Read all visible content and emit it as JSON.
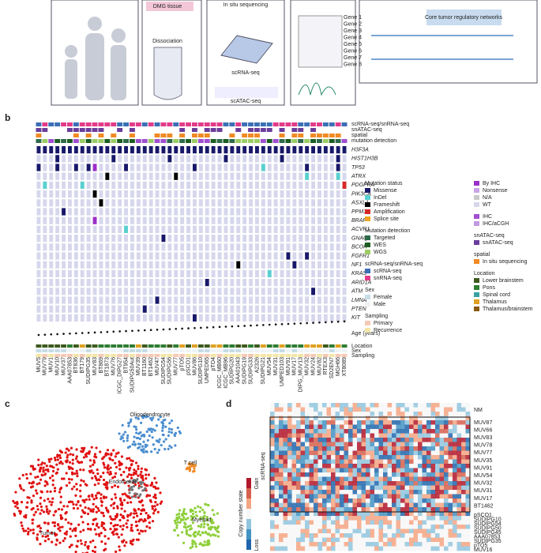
{
  "panels": {
    "a": "a",
    "b": "b",
    "c": "c",
    "d": "d"
  },
  "panel_a": {
    "tissue": "DMG tissue",
    "dissociation": "Dissociation",
    "insitu": "In situ sequencing",
    "scrna": "scRNA-seq",
    "scatac": "scATAC-seq",
    "genes": [
      "Gene 1",
      "Gene 2",
      "Gene 3",
      "Gene 4",
      "Gene 5",
      "Gene 6",
      "Gene 7",
      "Gene 8"
    ],
    "networks": "Core tumor regulatory networks"
  },
  "panel_b": {
    "tracks": [
      "scRNA-seq/snRNA-seq",
      "snATAC-seq",
      "spatial",
      "mutation detection"
    ],
    "genes": [
      "H3F3A",
      "HIST1H3B",
      "TP53",
      "ATRX",
      "PDGFRA",
      "PIK3CA",
      "ASXL1",
      "PPM1D",
      "BRAF",
      "ACVR1",
      "GNAQ",
      "BCOR",
      "FGFR1",
      "NF1",
      "KRAS",
      "ARID1A",
      "ATM",
      "LMNA",
      "PTEN",
      "KIT"
    ],
    "bottom_tracks": [
      "Age (years)",
      "Location",
      "Sex",
      "Sampling"
    ],
    "samples": [
      "MUV5",
      "MUV79",
      "MUV1",
      "MUV10",
      "MUV37",
      "AAA07853",
      "BT836",
      "BT179",
      "SUDIPG35",
      "MUV83",
      "BT869",
      "BT1873",
      "MUV76",
      "ICGC_DIPG27",
      "BT954",
      "SUDIPG50Aut",
      "MUV39",
      "BT1160",
      "BT1462",
      "MUV47",
      "SUDIPG54",
      "SUDIPG56",
      "MUV77",
      "pTO5",
      "pSCO1",
      "MUV86",
      "SUDIPG10",
      "UMPED65",
      "pTO4",
      "ICGC_MB60",
      "ICGC_MB96",
      "SUDIPG20",
      "AAA01043",
      "SUDIPG19",
      "SUDIPG33",
      "A2326",
      "SUDIPG21",
      "MUV54",
      "MUV31",
      "UMPED103",
      "MUV91",
      "MUV17",
      "DIPG_MUV13",
      "MUV32",
      "MUV24",
      "MUV82",
      "RTEX3",
      "SD2EN7",
      "MGH66",
      "XT8089"
    ],
    "mutations": [
      {
        "gene": "TP53",
        "sample": "MUV5",
        "status": "Missense"
      },
      {
        "gene": "TP53",
        "sample": "MUV10",
        "status": "Missense"
      },
      {
        "gene": "TP53",
        "sample": "BT836",
        "status": "Missense"
      },
      {
        "gene": "TP53",
        "sample": "SUDIPG35",
        "status": "Missense"
      },
      {
        "gene": "TP53",
        "sample": "MUV83",
        "status": "By IHC"
      },
      {
        "gene": "TP53",
        "sample": "BT954",
        "status": "Missense"
      },
      {
        "gene": "TP53",
        "sample": "MUV86",
        "status": "Missense"
      },
      {
        "gene": "TP53",
        "sample": "SUDIPG21",
        "status": "InDel"
      },
      {
        "gene": "TP53",
        "sample": "MUV32",
        "status": "Missense"
      },
      {
        "gene": "TP53",
        "sample": "MGH66",
        "status": "Missense"
      },
      {
        "gene": "ATRX",
        "sample": "BT1873",
        "status": "Frameshift"
      },
      {
        "gene": "ATRX",
        "sample": "MUV77",
        "status": "Frameshift"
      },
      {
        "gene": "ATRX",
        "sample": "MUV32",
        "status": "InDel"
      },
      {
        "gene": "ATRX",
        "sample": "MGH66",
        "status": "InDel"
      },
      {
        "gene": "PDGFRA",
        "sample": "MUV79",
        "status": "InDel"
      },
      {
        "gene": "PDGFRA",
        "sample": "BT179",
        "status": "InDel"
      },
      {
        "gene": "PDGFRA",
        "sample": "XT8089",
        "status": "Amplification"
      },
      {
        "gene": "PIK3CA",
        "sample": "MUV83",
        "status": "Frameshift"
      },
      {
        "gene": "ASXL1",
        "sample": "BT869",
        "status": "Frameshift"
      },
      {
        "gene": "PPM1D",
        "sample": "MUV37",
        "status": "Missense"
      },
      {
        "gene": "BRAF",
        "sample": "MUV83",
        "status": "By IHC"
      },
      {
        "gene": "ACVR1",
        "sample": "BT954",
        "status": "InDel"
      },
      {
        "gene": "GNAQ",
        "sample": "SUDIPG54",
        "status": "Missense"
      },
      {
        "gene": "FGFR1",
        "sample": "MUV91",
        "status": "Missense"
      },
      {
        "gene": "FGFR1",
        "sample": "MUV32",
        "status": "Missense"
      },
      {
        "gene": "NF1",
        "sample": "AAA01043",
        "status": "Frameshift"
      },
      {
        "gene": "NF1",
        "sample": "MUV17",
        "status": "Missense"
      },
      {
        "gene": "KRAS",
        "sample": "MUV54",
        "status": "InDel"
      },
      {
        "gene": "ARID1A",
        "sample": "UMPED65",
        "status": "Missense"
      },
      {
        "gene": "ATM",
        "sample": "MUV24",
        "status": "Missense"
      },
      {
        "gene": "LMNA",
        "sample": "MUV47",
        "status": "Missense"
      },
      {
        "gene": "PTEN",
        "sample": "BT1160",
        "status": "Missense"
      },
      {
        "gene": "KIT",
        "sample": "MUV86",
        "status": "Missense"
      }
    ],
    "legend": [
      {
        "title": "Mutation status",
        "items": [
          {
            "name": "Missense",
            "color": "#18186a"
          },
          {
            "name": "InDel",
            "color": "#5ad0d0"
          },
          {
            "name": "Frameshift",
            "color": "#000000"
          },
          {
            "name": "Amplification",
            "color": "#d62828"
          },
          {
            "name": "Splice site",
            "color": "#f2a31f"
          }
        ]
      },
      {
        "title": "",
        "items": [
          {
            "name": "By IHC",
            "color": "#9b2fc8"
          },
          {
            "name": "Nonsense",
            "color": "#c9a3e6"
          },
          {
            "name": "N/A",
            "color": "#c9c9c9"
          },
          {
            "name": "WT",
            "color": "#d6d7ec"
          }
        ]
      },
      {
        "title": "Mutation detection",
        "items": [
          {
            "name": "Targeted",
            "color": "#2e6b4a"
          },
          {
            "name": "WES",
            "color": "#1b5e20"
          },
          {
            "name": "WGS",
            "color": "#9ccc65"
          }
        ]
      },
      {
        "title": "",
        "items": [
          {
            "name": "IHC",
            "color": "#a04fd0"
          },
          {
            "name": "IHC/aCGH",
            "color": "#c29ae0"
          }
        ]
      },
      {
        "title": "scRNA-seq/snRNA-seq",
        "items": [
          {
            "name": "scRNA-seq",
            "color": "#3b6fb6"
          },
          {
            "name": "snRNA-seq",
            "color": "#e23b8a"
          }
        ]
      },
      {
        "title": "snATAC-seq",
        "items": [
          {
            "name": "snATAC-seq",
            "color": "#6a3d9a"
          }
        ]
      },
      {
        "title": "spatial",
        "items": [
          {
            "name": "In situ sequencing",
            "color": "#f08a24"
          }
        ]
      },
      {
        "title": "Sex",
        "items": [
          {
            "name": "Female",
            "color": "#c7dde6"
          },
          {
            "name": "Male",
            "color": "#eef3f5"
          }
        ]
      },
      {
        "title": "Location",
        "items": [
          {
            "name": "Lower brainstem",
            "color": "#3d5a1e"
          },
          {
            "name": "Pons",
            "color": "#2e7d32"
          },
          {
            "name": "Spinal cord",
            "color": "#3aa0a0"
          },
          {
            "name": "Thalamus",
            "color": "#e0a020"
          },
          {
            "name": "Thalamus/brainstem",
            "color": "#8a5a10"
          }
        ]
      },
      {
        "title": "Sampling",
        "items": [
          {
            "name": "Primary",
            "color": "#f6c9b5"
          },
          {
            "name": "Recurrence",
            "color": "#f3e6a6"
          }
        ]
      }
    ]
  },
  "panel_c": {
    "labels": [
      "Oligodendrocyte",
      "T cell",
      "Endothelial",
      "Myeloid",
      "Tumor"
    ]
  },
  "panel_d": {
    "rows_top": [
      "NM",
      "MUV87",
      "MUV66",
      "MUV83",
      "MUV78",
      "MUV77",
      "MUV35",
      "MUV91",
      "MUV54",
      "MUV32",
      "MUV31",
      "MUV17",
      "BT1462"
    ],
    "rows_bottom": [
      "pSCO1",
      "SUDIPG10",
      "SUDIPG54",
      "SUDIPG50",
      "SUDIPG45",
      "AAA07853",
      "SUDIPG35",
      "pTO5",
      "MUV16"
    ],
    "side": "scRNA-seq",
    "scale_title": "Copy number state",
    "gain": "Gain",
    "loss": "Loss"
  }
}
